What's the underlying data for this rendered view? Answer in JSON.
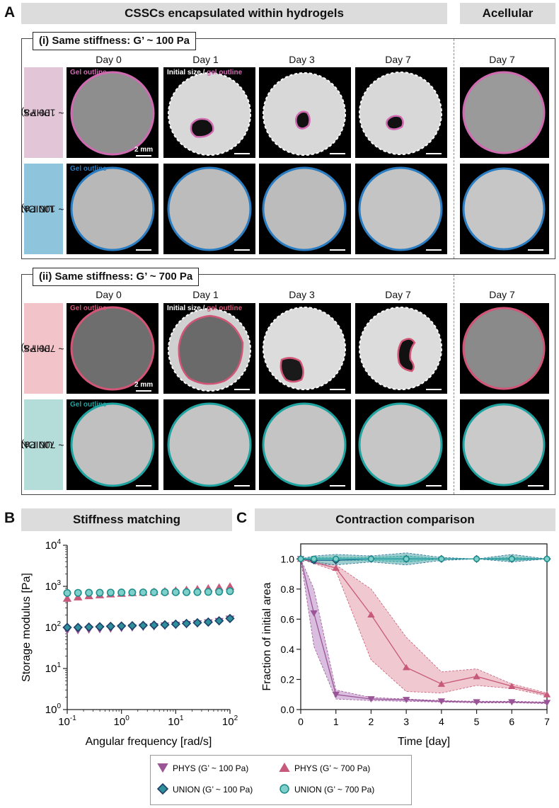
{
  "panelA": {
    "letter": "A",
    "header_main": "CSSCs encapsulated within hydrogels",
    "header_acellular": "Acellular",
    "section1_title": "(i) Same stiffness: G’ ~ 100 Pa",
    "section2_title": "(ii) Same stiffness: G’ ~ 700 Pa",
    "days": [
      "Day 0",
      "Day 1",
      "Day 3",
      "Day 7"
    ],
    "acellular_day": "Day 7",
    "rows": {
      "phys100": {
        "line1": "PHYS",
        "line2": "(G’ ~ 100 Pa)"
      },
      "union100": {
        "line1": "UNION",
        "line2": "(G’ ~ 100 Pa)"
      },
      "phys700": {
        "line1": "PHYS",
        "line2": "(G’ ~ 700 Pa)"
      },
      "union700": {
        "line1": "UNION",
        "line2": "(G’ ~ 700 Pa)"
      }
    },
    "gel_outline": "Gel outline",
    "initial_size": "Initial size",
    "slash": " / ",
    "gel_outline_lc": "gel outline",
    "scale_bar": "2 mm",
    "colors": {
      "phys100_row": "#e2c6d8",
      "union100_row": "#8ec4dc",
      "phys700_row": "#f2c4ca",
      "union700_row": "#b4dcd9",
      "phys100_outline": "#d06bb2",
      "union100_outline": "#2a7dc2",
      "phys700_outline": "#d25577",
      "union700_outline": "#1fa3a0"
    }
  },
  "panelB": {
    "letter": "B",
    "header": "Stiffness matching"
  },
  "panelC": {
    "letter": "C",
    "header": "Contraction comparison"
  },
  "chart_data": [
    {
      "type": "scatter",
      "title": "Stiffness matching",
      "xlabel": "Angular frequency [rad/s]",
      "ylabel": "Storage modulus [Pa]",
      "x_scale": "log",
      "y_scale": "log",
      "xlim": [
        0.1,
        100
      ],
      "ylim": [
        1,
        10000
      ],
      "x_tick_labels": [
        "10-1",
        "100",
        "101",
        "102"
      ],
      "y_tick_labels": [
        "100",
        "101",
        "102",
        "103",
        "104"
      ],
      "x": [
        0.1,
        0.158,
        0.251,
        0.398,
        0.631,
        1.0,
        1.58,
        2.51,
        3.98,
        6.31,
        10,
        15.8,
        25.1,
        39.8,
        63.1,
        100
      ],
      "series": [
        {
          "name": "PHYS (G’ ~ 100 Pa)",
          "marker": "triangle-down",
          "color": "#9a5596",
          "values": [
            85,
            85,
            88,
            90,
            93,
            96,
            99,
            102,
            105,
            109,
            113,
            118,
            123,
            130,
            140,
            160
          ]
        },
        {
          "name": "PHYS (G’ ~ 700 Pa)",
          "marker": "triangle-up",
          "color": "#c75a7a",
          "values": [
            510,
            550,
            590,
            620,
            650,
            675,
            700,
            720,
            745,
            770,
            800,
            830,
            860,
            900,
            950,
            1000
          ]
        },
        {
          "name": "UNION (G’ ~ 100 Pa)",
          "marker": "diamond",
          "color": "#2f6f9a",
          "values": [
            100,
            100,
            102,
            104,
            106,
            108,
            110,
            112,
            114,
            116,
            120,
            125,
            130,
            135,
            145,
            165
          ]
        },
        {
          "name": "UNION (G’ ~ 700 Pa)",
          "marker": "circle",
          "color": "#2aa3a0",
          "values": [
            690,
            695,
            700,
            700,
            705,
            710,
            710,
            712,
            715,
            718,
            720,
            722,
            725,
            730,
            740,
            760
          ]
        }
      ]
    },
    {
      "type": "line",
      "title": "Contraction comparison",
      "xlabel": "Time [day]",
      "ylabel": "Fraction of initial area",
      "xlim": [
        0,
        7
      ],
      "ylim": [
        0,
        1.1
      ],
      "x_ticks": [
        0,
        1,
        2,
        3,
        4,
        5,
        6,
        7
      ],
      "y_ticks": [
        0.0,
        0.2,
        0.4,
        0.6,
        0.8,
        1.0
      ],
      "y_tick_labels": [
        "0.0",
        "0.2",
        "0.4",
        "0.6",
        "0.8",
        "1.0"
      ],
      "series": [
        {
          "name": "PHYS (G’ ~ 100 Pa)",
          "marker": "triangle-down",
          "color": "#9a5596",
          "band_color": "#b988c4",
          "x": [
            0,
            0.375,
            1,
            2,
            3,
            4,
            5,
            6,
            7
          ],
          "y": [
            1.0,
            0.64,
            0.1,
            0.07,
            0.065,
            0.055,
            0.05,
            0.05,
            0.045
          ],
          "upper": [
            1.0,
            0.8,
            0.13,
            0.08,
            0.07,
            0.06,
            0.055,
            0.055,
            0.05
          ],
          "lower": [
            1.0,
            0.42,
            0.07,
            0.06,
            0.055,
            0.05,
            0.045,
            0.045,
            0.04
          ]
        },
        {
          "name": "PHYS (G’ ~ 700 Pa)",
          "marker": "triangle-up",
          "color": "#c75a7a",
          "band_color": "#e39aa8",
          "x": [
            0,
            1,
            2,
            3,
            4,
            5,
            6,
            7
          ],
          "y": [
            1.0,
            0.94,
            0.63,
            0.28,
            0.17,
            0.22,
            0.155,
            0.1
          ],
          "upper": [
            1.0,
            0.96,
            0.8,
            0.48,
            0.25,
            0.27,
            0.17,
            0.11
          ],
          "lower": [
            1.0,
            0.92,
            0.33,
            0.12,
            0.11,
            0.16,
            0.14,
            0.09
          ]
        },
        {
          "name": "UNION (G’ ~ 100 Pa)",
          "marker": "diamond",
          "color": "#2f6f9a",
          "band_color": "#4fa6a6",
          "x": [
            0,
            0.375,
            1,
            2,
            3,
            4,
            5,
            6,
            7
          ],
          "y": [
            1.0,
            0.99,
            0.99,
            1.0,
            1.0,
            1.0,
            1.0,
            1.0,
            1.0
          ],
          "upper": [
            1.0,
            1.02,
            1.03,
            1.02,
            1.04,
            1.01,
            1.0,
            1.03,
            1.0
          ],
          "lower": [
            1.0,
            0.97,
            0.96,
            0.98,
            0.96,
            0.99,
            1.0,
            0.98,
            1.0
          ]
        },
        {
          "name": "UNION (G’ ~ 700 Pa)",
          "marker": "circle",
          "color": "#2aa3a0",
          "band_color": "#4fb8b4",
          "x": [
            0,
            0.375,
            1,
            2,
            3,
            4,
            5,
            6,
            7
          ],
          "y": [
            1.0,
            1.0,
            1.0,
            1.0,
            1.0,
            1.0,
            1.0,
            1.0,
            1.0
          ],
          "upper": [
            1.0,
            1.01,
            1.01,
            1.01,
            1.02,
            1.0,
            1.0,
            1.01,
            1.0
          ],
          "lower": [
            1.0,
            0.99,
            0.99,
            0.99,
            0.98,
            1.0,
            1.0,
            0.99,
            1.0
          ]
        }
      ]
    }
  ],
  "legend": {
    "items": [
      {
        "label": "PHYS (G’ ~ 100 Pa)",
        "marker": "triangle-down"
      },
      {
        "label": "PHYS (G’ ~ 700 Pa)",
        "marker": "triangle-up"
      },
      {
        "label": "UNION (G’ ~ 100 Pa)",
        "marker": "diamond"
      },
      {
        "label": "UNION (G’ ~ 700 Pa)",
        "marker": "circle"
      }
    ]
  }
}
